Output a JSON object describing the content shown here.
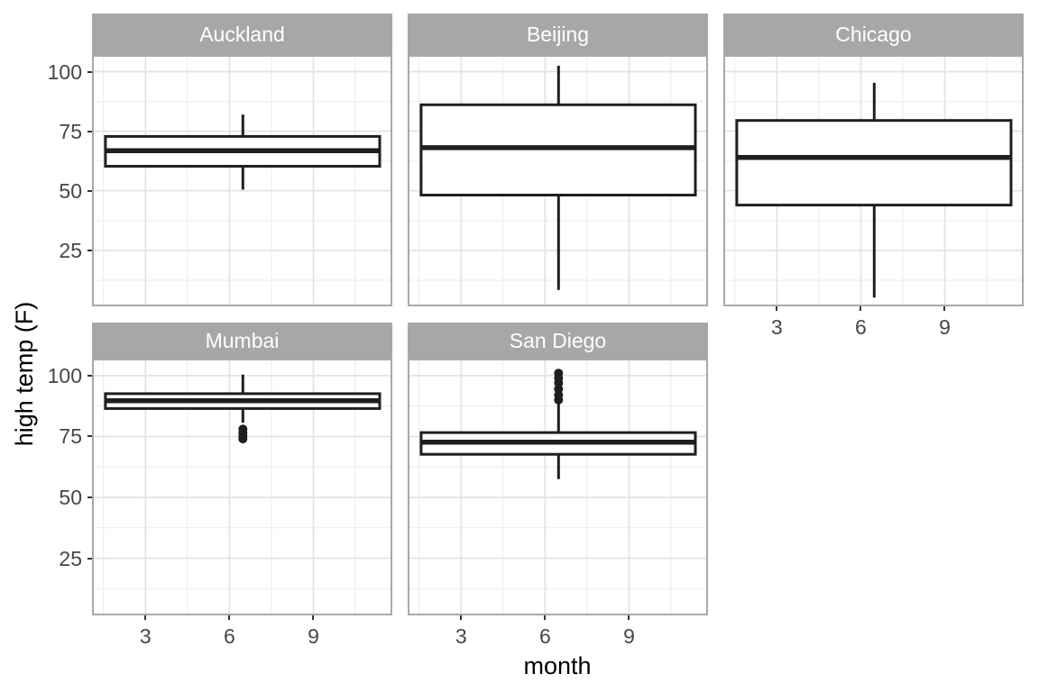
{
  "chart_data": {
    "type": "boxplot",
    "title": "",
    "xlabel": "month",
    "ylabel": "high temp (F)",
    "x_ticks": [
      3,
      6,
      9
    ],
    "x_minor_ticks": [
      1.5,
      4.5,
      7.5,
      10.5
    ],
    "xlim": [
      1.09,
      11.82
    ],
    "y_ticks": [
      25,
      50,
      75,
      100
    ],
    "y_minor_ticks": [
      12.5,
      37.5,
      62.5,
      87.5
    ],
    "ylim": [
      1.5,
      107.0
    ],
    "grid": true,
    "legend": "none",
    "box_span_months": [
      1.57,
      11.37
    ],
    "whisker_x_month": 6.48,
    "facets": [
      {
        "label": "Auckland",
        "row": 0,
        "col": 0,
        "show_x_axis": false,
        "show_y_axis": true,
        "stats": {
          "min": 50.5,
          "q1": 60.3,
          "median": 66.8,
          "q3": 72.8,
          "max": 82.0
        },
        "outliers": []
      },
      {
        "label": "Beijing",
        "row": 0,
        "col": 1,
        "show_x_axis": false,
        "show_y_axis": false,
        "stats": {
          "min": 8.4,
          "q1": 48.2,
          "median": 68.1,
          "q3": 86.1,
          "max": 102.5
        },
        "outliers": []
      },
      {
        "label": "Chicago",
        "row": 0,
        "col": 2,
        "show_x_axis": true,
        "show_y_axis": false,
        "stats": {
          "min": 5.2,
          "q1": 44.0,
          "median": 64.0,
          "q3": 79.5,
          "max": 95.3
        },
        "outliers": []
      },
      {
        "label": "Mumbai",
        "row": 1,
        "col": 0,
        "show_x_axis": true,
        "show_y_axis": true,
        "stats": {
          "min": 80.7,
          "q1": 86.5,
          "median": 89.7,
          "q3": 92.6,
          "max": 100.4
        },
        "outliers": [
          78.0,
          76.5,
          75.0,
          74.0
        ]
      },
      {
        "label": "San Diego",
        "row": 1,
        "col": 1,
        "show_x_axis": true,
        "show_y_axis": false,
        "stats": {
          "min": 57.5,
          "q1": 67.7,
          "median": 72.7,
          "q3": 76.6,
          "max": 88.6
        },
        "outliers": [
          101.0,
          99.0,
          97.0,
          94.5,
          92.0,
          90.0
        ]
      }
    ],
    "colors": {
      "background": "#ffffff",
      "strip_bg": "#a7a7a7",
      "strip_text": "#ffffff",
      "panel_bg": "#ffffff",
      "panel_border": "#a9a9a9",
      "grid_major": "#e3e3e3",
      "grid_minor": "#f0f0f0",
      "box_stroke": "#1f1f1f",
      "tick_text": "#474747",
      "tick_mark": "#333333",
      "axis_title_text": "#000000"
    }
  }
}
